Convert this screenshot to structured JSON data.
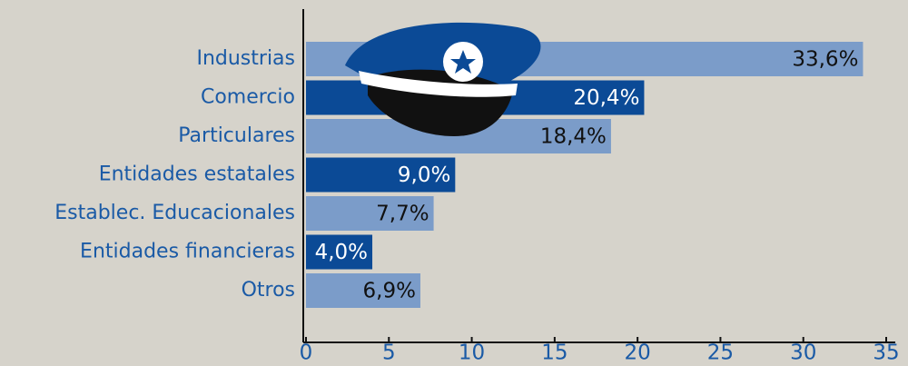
{
  "chart_data": {
    "type": "bar",
    "orientation": "horizontal",
    "categories": [
      "Industrias",
      "Comercio",
      "Particulares",
      "Entidades estatales",
      "Establec. Educacionales",
      "Entidades financieras",
      "Otros"
    ],
    "values": [
      33.6,
      20.4,
      18.4,
      9.0,
      7.7,
      4.0,
      6.9
    ],
    "value_labels": [
      "33,6%",
      "20,4%",
      "18,4%",
      "9,0%",
      "7,7%",
      "4,0%",
      "6,9%"
    ],
    "colors": [
      "#7b9cc9",
      "#0b4a96",
      "#7b9cc9",
      "#0b4a96",
      "#7b9cc9",
      "#0b4a96",
      "#7b9cc9"
    ],
    "label_colors": [
      "#111111",
      "#ffffff",
      "#111111",
      "#ffffff",
      "#111111",
      "#ffffff",
      "#111111"
    ],
    "xlim": [
      0,
      35
    ],
    "xticks": [
      0,
      5,
      10,
      15,
      20,
      25,
      30,
      35
    ]
  }
}
